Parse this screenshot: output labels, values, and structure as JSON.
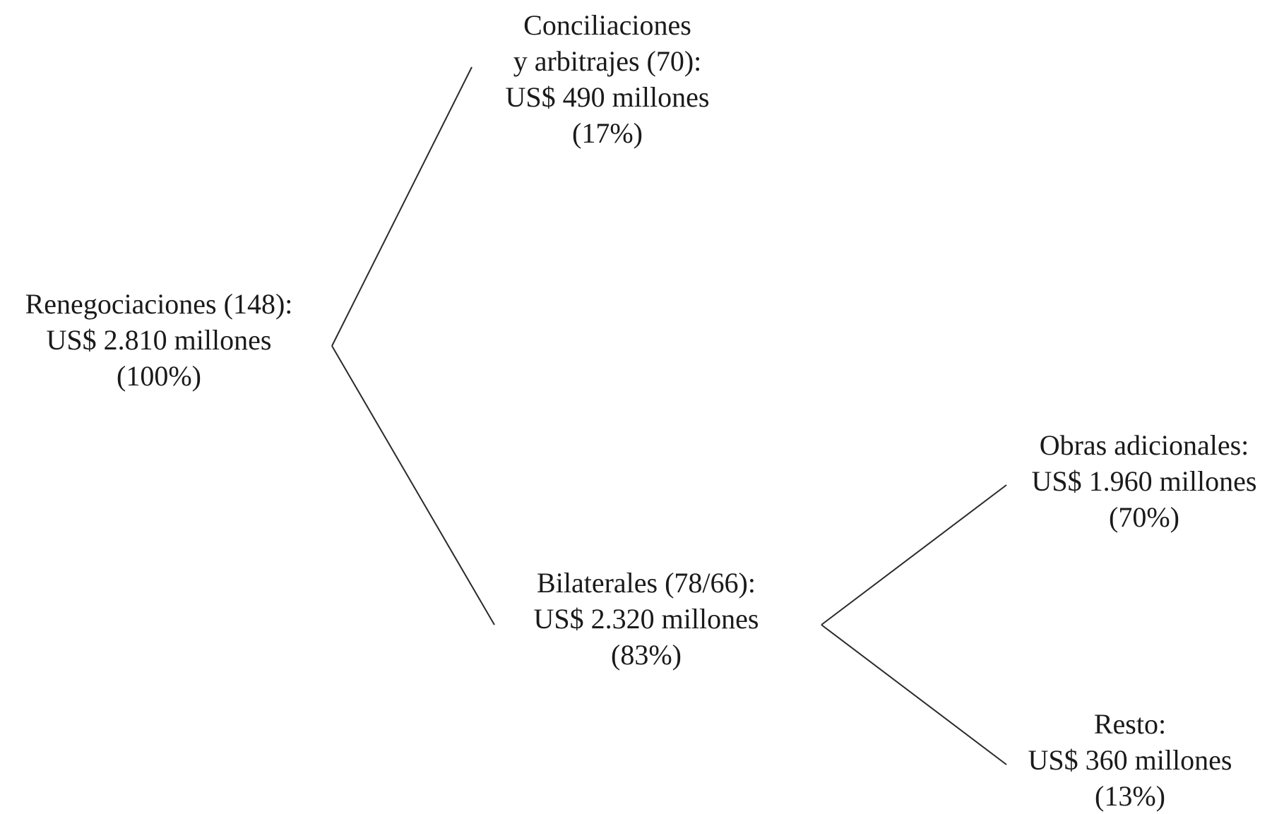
{
  "diagram": {
    "nodes": {
      "root": {
        "lines": [
          "Renegociaciones (148):",
          "US$ 2.810 millones",
          "(100%)"
        ]
      },
      "conciliaciones": {
        "lines": [
          "Conciliaciones",
          "y arbitrajes (70):",
          "US$ 490 millones",
          "(17%)"
        ]
      },
      "bilaterales": {
        "lines": [
          "Bilaterales (78/66):",
          "US$ 2.320 millones",
          "(83%)"
        ]
      },
      "obras": {
        "lines": [
          "Obras adicionales:",
          "US$ 1.960 millones",
          "(70%)"
        ]
      },
      "resto": {
        "lines": [
          "Resto:",
          "US$ 360 millones",
          "(13%)"
        ]
      }
    },
    "edges": [
      {
        "from": "root",
        "to": "conciliaciones"
      },
      {
        "from": "root",
        "to": "bilaterales"
      },
      {
        "from": "bilaterales",
        "to": "obras"
      },
      {
        "from": "bilaterales",
        "to": "resto"
      }
    ]
  }
}
